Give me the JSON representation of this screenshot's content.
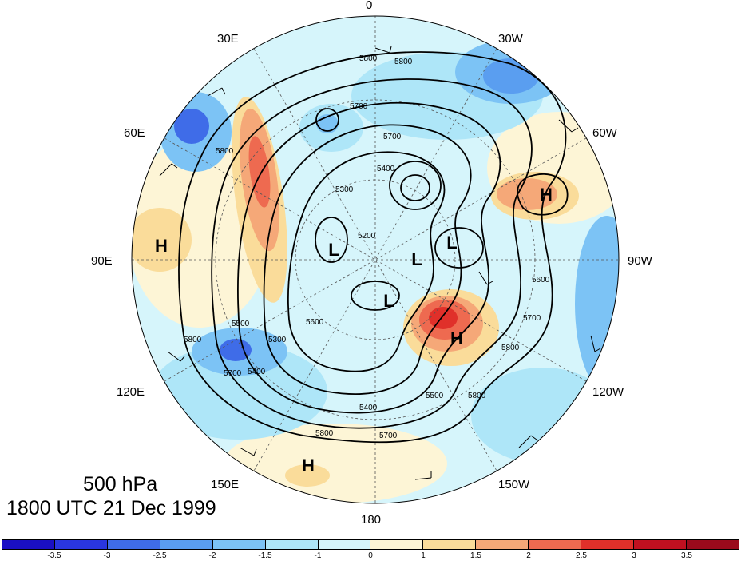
{
  "title": {
    "level": "500 hPa",
    "time": "1800 UTC 21 Dec 1999"
  },
  "longitude_labels": [
    "0",
    "30W",
    "60W",
    "90W",
    "120W",
    "150W",
    "180",
    "150E",
    "120E",
    "90E",
    "60E",
    "30E"
  ],
  "systems": [
    {
      "type": "H",
      "name": "high-north-atlantic"
    },
    {
      "type": "H",
      "name": "high-asia"
    },
    {
      "type": "H",
      "name": "high-alaska"
    },
    {
      "type": "H",
      "name": "high-north-pacific"
    },
    {
      "type": "L",
      "name": "low-arctic-1"
    },
    {
      "type": "L",
      "name": "low-arctic-2"
    },
    {
      "type": "L",
      "name": "low-canada"
    },
    {
      "type": "L",
      "name": "low-east-siberia"
    }
  ],
  "contour_labels": [
    "5800",
    "5800",
    "5700",
    "5700",
    "5800",
    "5800",
    "5700",
    "5200",
    "5400",
    "5500",
    "5300",
    "5500",
    "5400",
    "5700",
    "5800",
    "5800",
    "5700",
    "5600",
    "5800",
    "5300",
    "5400",
    "5600"
  ],
  "colorbar": {
    "labels": [
      "-3.5",
      "-3",
      "-2.5",
      "-2",
      "-1.5",
      "-1",
      "0",
      "1",
      "1.5",
      "2",
      "2.5",
      "3",
      "3.5"
    ],
    "colors": [
      "#1a0fc4",
      "#2a36e0",
      "#3f6ce8",
      "#5a9ef0",
      "#7cc3f5",
      "#aee6f8",
      "#d6f5fb",
      "#fdf5d6",
      "#fadc9a",
      "#f5a878",
      "#ee6a50",
      "#e0302a",
      "#c01020",
      "#9a0a1c"
    ]
  }
}
